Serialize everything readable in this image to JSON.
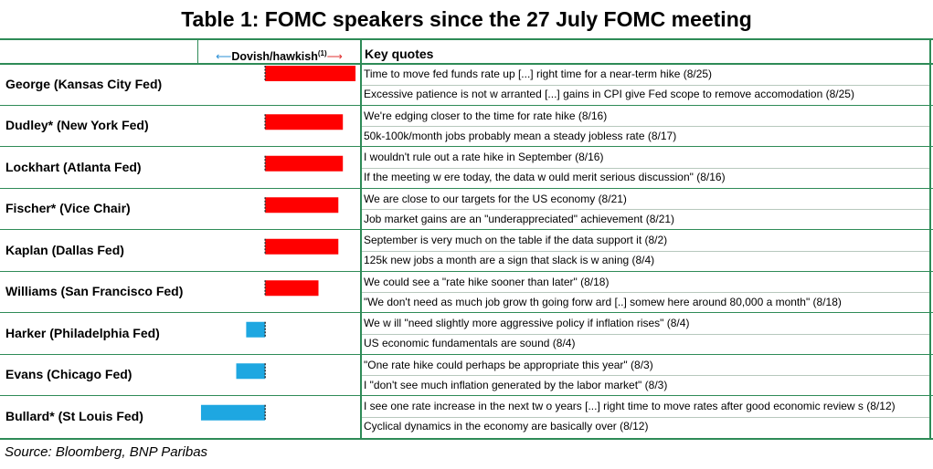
{
  "title": "Table 1: FOMC speakers since the 27 July FOMC meeting",
  "header": {
    "axis_left_arrow": "⟵",
    "axis_label": "Dovish/hawkish",
    "axis_footnote": "(1)",
    "axis_right_arrow": "⟶",
    "quotes_label": "Key quotes"
  },
  "rows": [
    {
      "name": "George (Kansas City Fed)",
      "quotes": [
        "Time to move fed funds rate up [...] right time for a near-term hike (8/25)",
        "Excessive patience is not w arranted [...] gains in CPI give Fed scope to remove accomodation (8/25)"
      ]
    },
    {
      "name": "Dudley* (New York Fed)",
      "quotes": [
        "We're edging closer to the time for rate hike (8/16)",
        "50k-100k/month jobs probably mean a steady jobless rate (8/17)"
      ]
    },
    {
      "name": "Lockhart (Atlanta Fed)",
      "quotes": [
        "I wouldn't rule out a rate hike in September (8/16)",
        "If the meeting w ere today, the data w ould merit serious discussion\" (8/16)"
      ]
    },
    {
      "name": "Fischer* (Vice Chair)",
      "quotes": [
        "We are close to our targets for the US economy (8/21)",
        "Job market gains are an \"underappreciated\" achievement (8/21)"
      ]
    },
    {
      "name": "Kaplan (Dallas Fed)",
      "quotes": [
        "September is very much on the table if the data support it (8/2)",
        "125k new jobs a month are a sign that slack is w aning (8/4)"
      ]
    },
    {
      "name": "Williams (San Francisco Fed)",
      "quotes": [
        "We could see a \"rate hike sooner than later\" (8/18)",
        "\"We don't need as much job grow th going forw ard [..] somew here around 80,000 a month\"  (8/18)"
      ]
    },
    {
      "name": "Harker (Philadelphia Fed)",
      "quotes": [
        "We w ill \"need slightly more aggressive policy if inflation rises\" (8/4)",
        "US economic fundamentals are sound (8/4)"
      ]
    },
    {
      "name": "Evans (Chicago Fed)",
      "quotes": [
        "\"One rate hike could perhaps be appropriate this year\" (8/3)",
        "I \"don't see much inflation generated by the labor market\" (8/3)"
      ]
    },
    {
      "name": "Bullard* (St Louis Fed)",
      "quotes": [
        "I see one rate increase in the next tw o years [...] right time to move rates after good economic review s (8/12)",
        "Cyclical dynamics in the economy are basically over (8/12)"
      ]
    }
  ],
  "source": "Source: Bloomberg, BNP Paribas",
  "chart_data": {
    "type": "bar",
    "orientation": "horizontal",
    "categories": [
      "George (Kansas City Fed)",
      "Dudley* (New York Fed)",
      "Lockhart (Atlanta Fed)",
      "Fischer* (Vice Chair)",
      "Kaplan (Dallas Fed)",
      "Williams (San Francisco Fed)",
      "Harker (Philadelphia Fed)",
      "Evans (Chicago Fed)",
      "Bullard* (St Louis Fed)"
    ],
    "values": [
      1.0,
      0.86,
      0.86,
      0.81,
      0.81,
      0.59,
      -0.21,
      -0.32,
      -0.71
    ],
    "xlim": [
      -0.75,
      1.05
    ],
    "colors": {
      "hawkish": "#ff0000",
      "dovish": "#1ea7e1",
      "accent_green": "#2e8b57"
    }
  }
}
